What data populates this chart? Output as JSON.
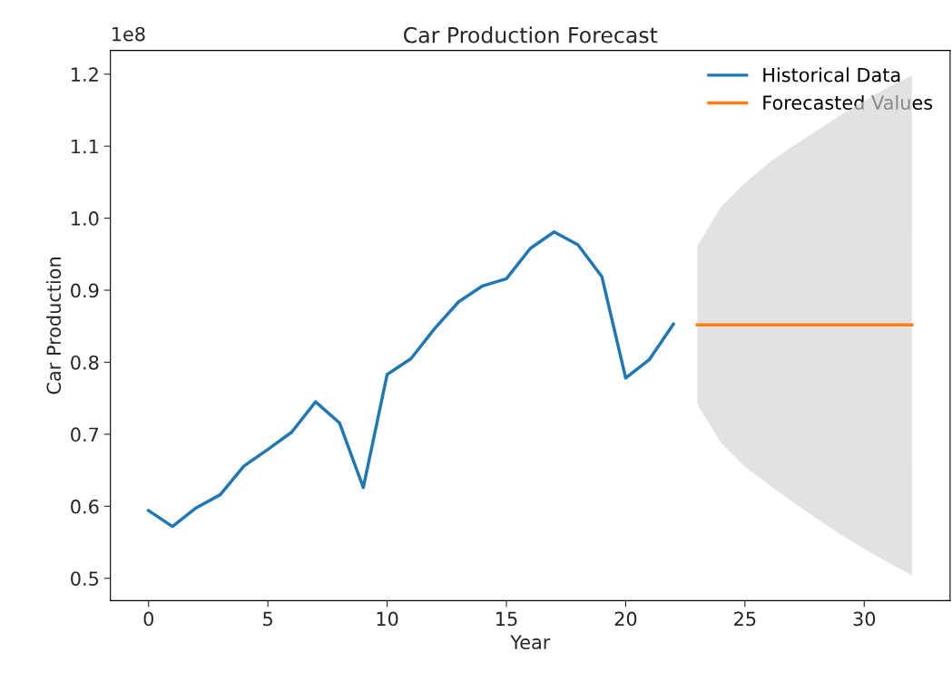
{
  "chart_data": {
    "type": "line",
    "title": "Car Production Forecast",
    "xlabel": "Year",
    "ylabel": "Car Production",
    "annotations": [
      "1e8"
    ],
    "series": [
      {
        "name": "Historical Data",
        "color": "#1f77b4",
        "x": [
          0,
          1,
          2,
          3,
          4,
          5,
          6,
          7,
          8,
          9,
          10,
          11,
          12,
          13,
          14,
          15,
          16,
          17,
          18,
          19,
          20,
          21,
          22
        ],
        "values": [
          0.594,
          0.572,
          0.598,
          0.616,
          0.656,
          0.679,
          0.703,
          0.745,
          0.716,
          0.626,
          0.783,
          0.805,
          0.847,
          0.884,
          0.906,
          0.916,
          0.958,
          0.981,
          0.963,
          0.919,
          0.778,
          0.804,
          0.853
        ]
      },
      {
        "name": "Forecasted Values",
        "color": "#ff7f0e",
        "x": [
          23,
          24,
          25,
          26,
          27,
          28,
          29,
          30,
          31,
          32
        ],
        "values": [
          0.852,
          0.852,
          0.852,
          0.852,
          0.852,
          0.852,
          0.852,
          0.852,
          0.852,
          0.852
        ],
        "lower": [
          0.742,
          0.688,
          0.655,
          0.63,
          0.606,
          0.583,
          0.561,
          0.541,
          0.522,
          0.504
        ],
        "upper": [
          0.961,
          1.016,
          1.049,
          1.077,
          1.1,
          1.121,
          1.143,
          1.163,
          1.182,
          1.198
        ]
      }
    ],
    "xlim": [
      -1.6,
      33.6
    ],
    "xticks": [
      0,
      5,
      10,
      15,
      20,
      25,
      30
    ],
    "ylim": [
      0.469,
      1.233
    ],
    "yticks": [
      0.5,
      0.6,
      0.7,
      0.8,
      0.9,
      {
        "value": 1.0,
        "label": "1.0"
      },
      1.1,
      1.2
    ],
    "legend": "top right",
    "grid": false
  }
}
